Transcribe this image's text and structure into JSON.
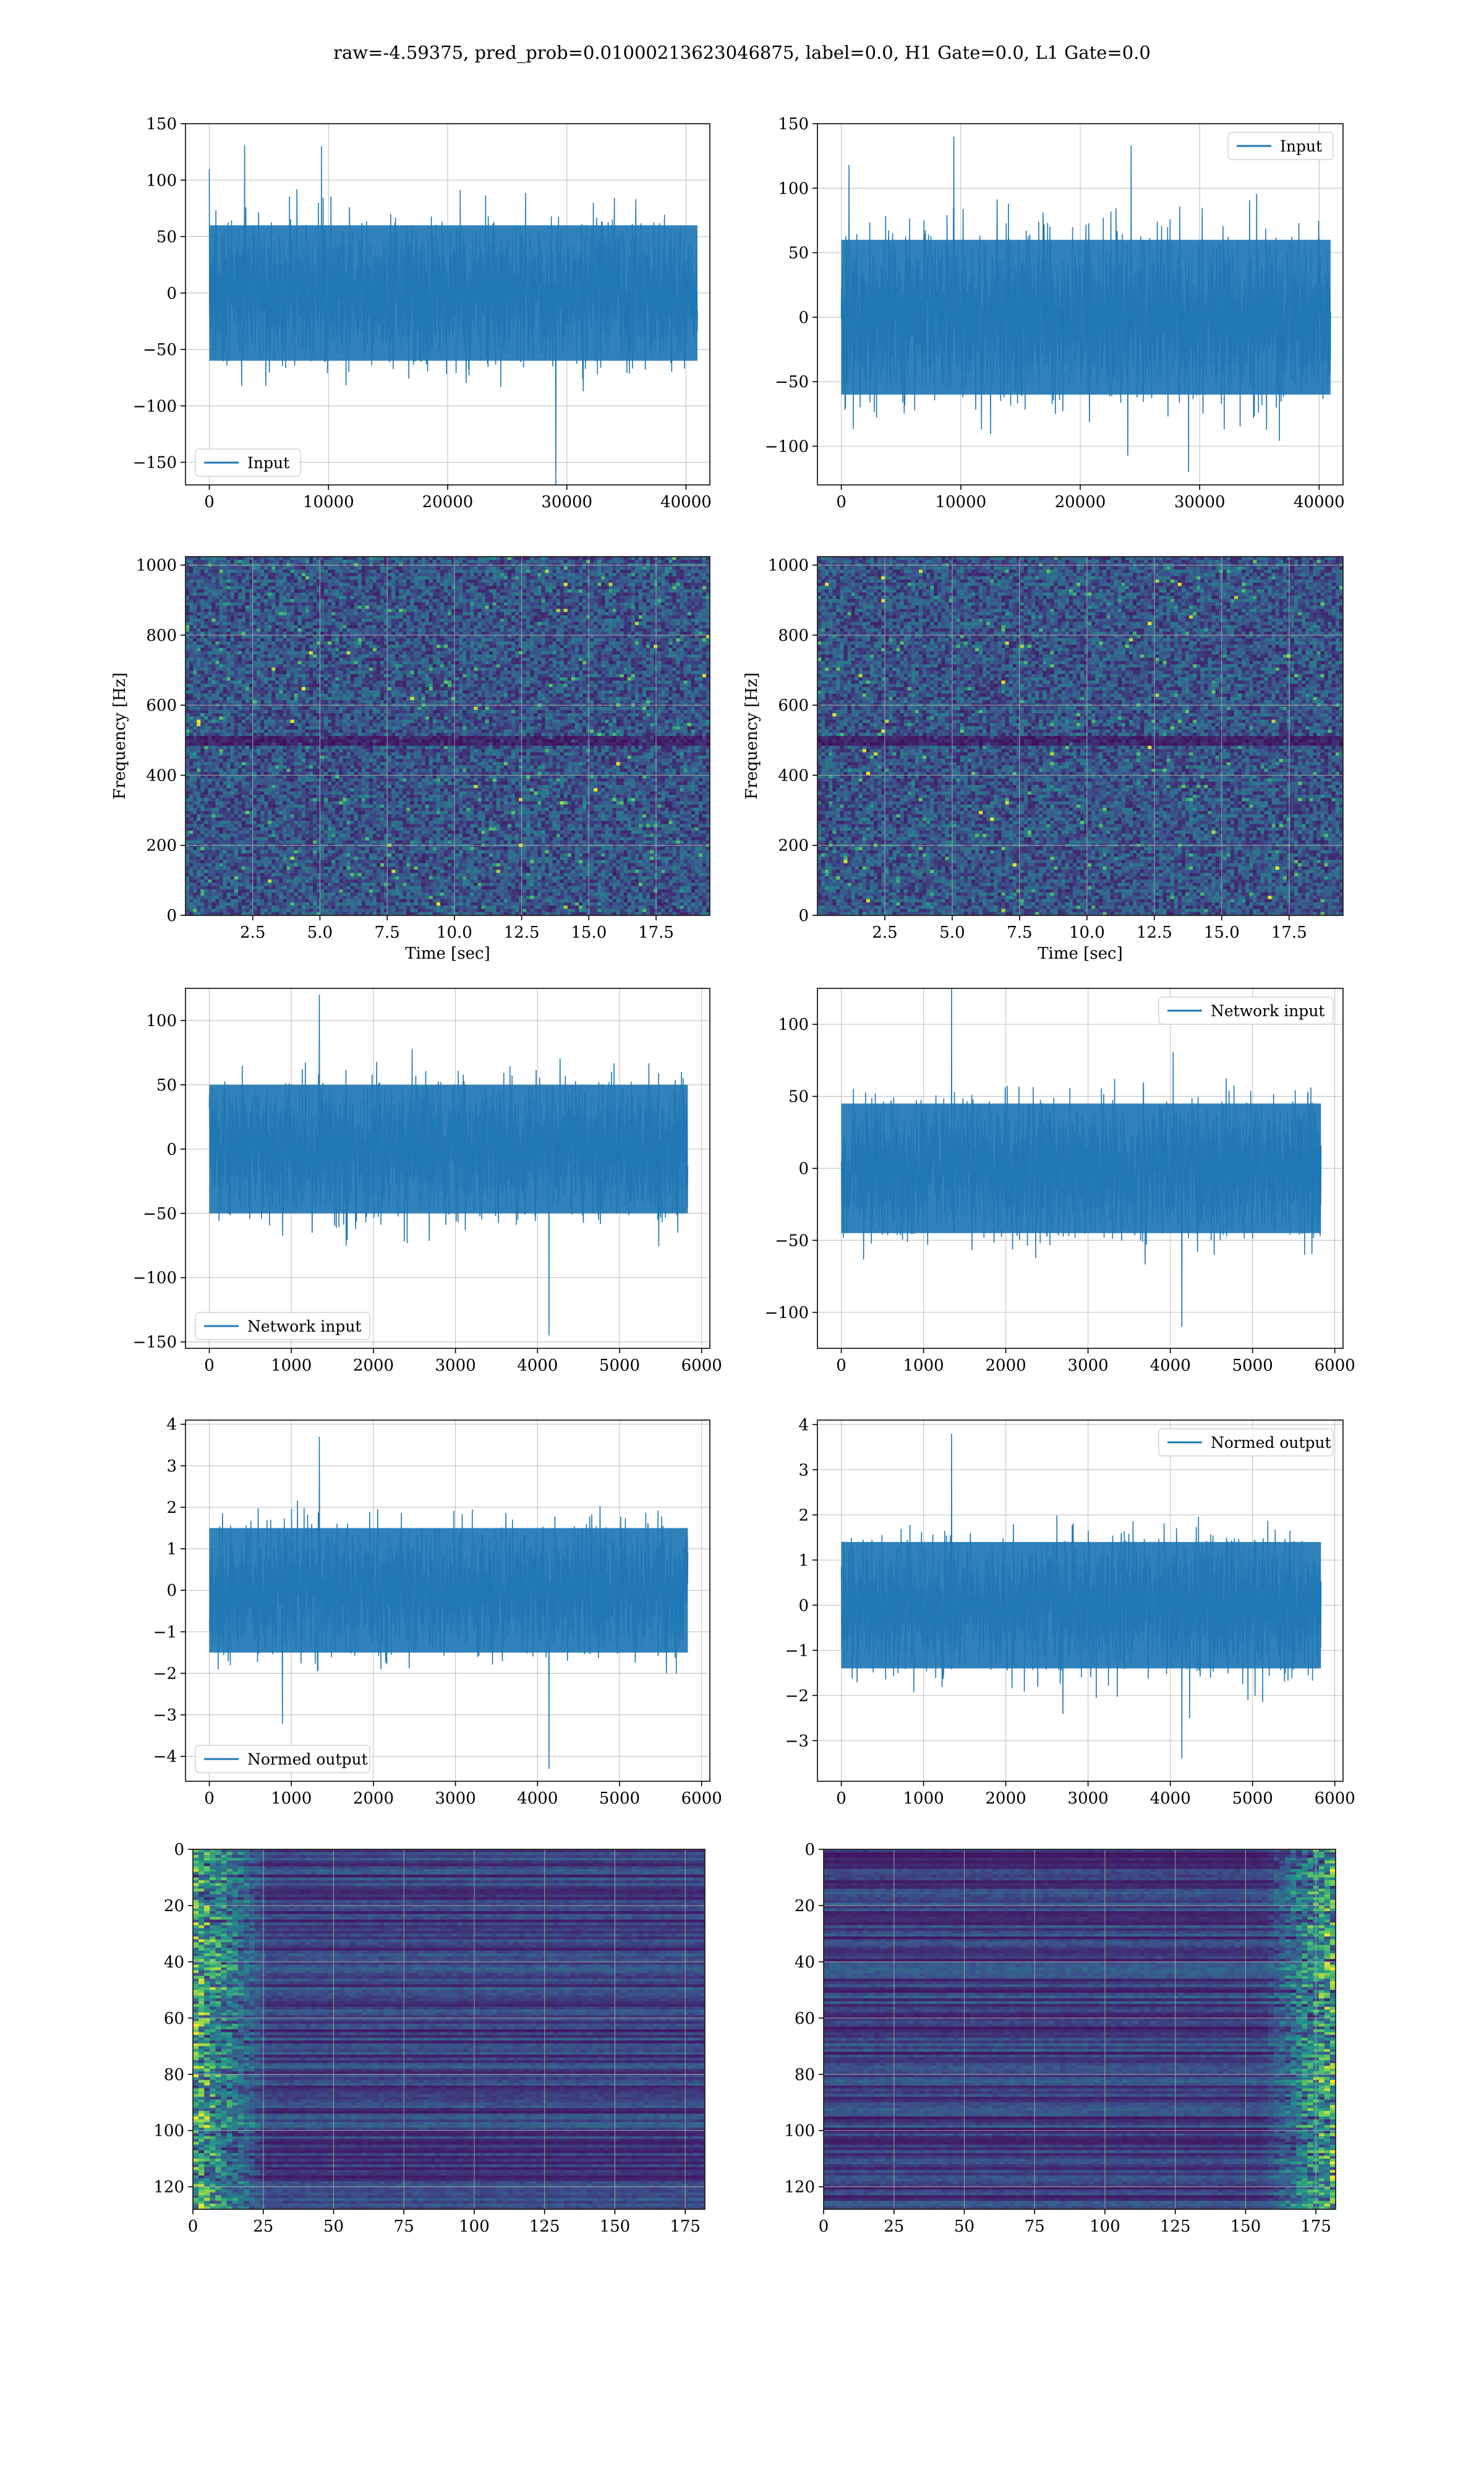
{
  "figure": {
    "title": "raw=-4.59375, pred_prob=0.01000213623046875, label=0.0, H1 Gate=0.0, L1 Gate=0.0"
  },
  "colors": {
    "line": "#1f77b4",
    "grid": "#b0b0b0",
    "viridis": [
      "#440154",
      "#3b528b",
      "#21918c",
      "#5ec962",
      "#fde725"
    ]
  },
  "chart_data": [
    {
      "id": "input-h1",
      "type": "line",
      "xlim": [
        -2000,
        42000
      ],
      "ylim": [
        -170,
        150
      ],
      "xticks": [
        "0",
        "10000",
        "20000",
        "30000",
        "40000"
      ],
      "xtick_values": [
        0,
        10000,
        20000,
        30000,
        40000
      ],
      "yticks": [
        "−150",
        "−100",
        "−50",
        "0",
        "50",
        "100",
        "150"
      ],
      "ytick_values": [
        -150,
        -100,
        -50,
        0,
        50,
        100,
        150
      ],
      "xlabel": "",
      "ylabel": "",
      "legend": "lower-left",
      "series": [
        {
          "name": "Input",
          "x_range": [
            0,
            40960
          ],
          "band": [
            -60,
            60
          ],
          "peaks": [
            130,
            -170
          ]
        }
      ]
    },
    {
      "id": "input-l1",
      "type": "line",
      "xlim": [
        -2000,
        42000
      ],
      "ylim": [
        -130,
        150
      ],
      "xticks": [
        "0",
        "10000",
        "20000",
        "30000",
        "40000"
      ],
      "xtick_values": [
        0,
        10000,
        20000,
        30000,
        40000
      ],
      "yticks": [
        "−100",
        "−50",
        "0",
        "50",
        "100",
        "150"
      ],
      "ytick_values": [
        -100,
        -50,
        0,
        50,
        100,
        150
      ],
      "xlabel": "",
      "ylabel": "",
      "legend": "upper-right",
      "series": [
        {
          "name": "Input",
          "x_range": [
            0,
            40960
          ],
          "band": [
            -60,
            60
          ],
          "peaks": [
            140,
            -120
          ]
        }
      ]
    },
    {
      "id": "spec-h1",
      "type": "heatmap",
      "xlim": [
        0,
        19.5
      ],
      "ylim": [
        0,
        1024
      ],
      "xticks": [
        "2.5",
        "5.0",
        "7.5",
        "10.0",
        "12.5",
        "15.0",
        "17.5"
      ],
      "xtick_values": [
        2.5,
        5,
        7.5,
        10,
        12.5,
        15,
        17.5
      ],
      "yticks": [
        "0",
        "200",
        "400",
        "600",
        "800",
        "1000"
      ],
      "ytick_values": [
        0,
        200,
        400,
        600,
        800,
        1000
      ],
      "xlabel": "Time [sec]",
      "ylabel": "Frequency [Hz]",
      "colormap": "viridis"
    },
    {
      "id": "spec-l1",
      "type": "heatmap",
      "xlim": [
        0,
        19.5
      ],
      "ylim": [
        0,
        1024
      ],
      "xticks": [
        "2.5",
        "5.0",
        "7.5",
        "10.0",
        "12.5",
        "15.0",
        "17.5"
      ],
      "xtick_values": [
        2.5,
        5,
        7.5,
        10,
        12.5,
        15,
        17.5
      ],
      "yticks": [
        "0",
        "200",
        "400",
        "600",
        "800",
        "1000"
      ],
      "ytick_values": [
        0,
        200,
        400,
        600,
        800,
        1000
      ],
      "xlabel": "Time [sec]",
      "ylabel": "Frequency [Hz]",
      "colormap": "viridis"
    },
    {
      "id": "net-h1",
      "type": "line",
      "xlim": [
        -290,
        6100
      ],
      "ylim": [
        -155,
        125
      ],
      "xticks": [
        "0",
        "1000",
        "2000",
        "3000",
        "4000",
        "5000",
        "6000"
      ],
      "xtick_values": [
        0,
        1000,
        2000,
        3000,
        4000,
        5000,
        6000
      ],
      "yticks": [
        "−150",
        "−100",
        "−50",
        "0",
        "50",
        "100"
      ],
      "ytick_values": [
        -150,
        -100,
        -50,
        0,
        50,
        100
      ],
      "xlabel": "",
      "ylabel": "",
      "legend": "lower-left",
      "series": [
        {
          "name": "Network input",
          "x_range": [
            0,
            5832
          ],
          "band": [
            -50,
            50
          ],
          "peaks": [
            120,
            -145
          ]
        }
      ]
    },
    {
      "id": "net-l1",
      "type": "line",
      "xlim": [
        -290,
        6100
      ],
      "ylim": [
        -125,
        125
      ],
      "xticks": [
        "0",
        "1000",
        "2000",
        "3000",
        "4000",
        "5000",
        "6000"
      ],
      "xtick_values": [
        0,
        1000,
        2000,
        3000,
        4000,
        5000,
        6000
      ],
      "yticks": [
        "−100",
        "−50",
        "0",
        "50",
        "100"
      ],
      "ytick_values": [
        -100,
        -50,
        0,
        50,
        100
      ],
      "xlabel": "",
      "ylabel": "",
      "legend": "upper-right",
      "series": [
        {
          "name": "Network input",
          "x_range": [
            0,
            5832
          ],
          "band": [
            -45,
            45
          ],
          "peaks": [
            125,
            -110
          ]
        }
      ]
    },
    {
      "id": "norm-h1",
      "type": "line",
      "xlim": [
        -290,
        6100
      ],
      "ylim": [
        -4.6,
        4.1
      ],
      "xticks": [
        "0",
        "1000",
        "2000",
        "3000",
        "4000",
        "5000",
        "6000"
      ],
      "xtick_values": [
        0,
        1000,
        2000,
        3000,
        4000,
        5000,
        6000
      ],
      "yticks": [
        "−4",
        "−3",
        "−2",
        "−1",
        "0",
        "1",
        "2",
        "3",
        "4"
      ],
      "ytick_values": [
        -4,
        -3,
        -2,
        -1,
        0,
        1,
        2,
        3,
        4
      ],
      "xlabel": "",
      "ylabel": "",
      "legend": "lower-left",
      "series": [
        {
          "name": "Normed output",
          "x_range": [
            0,
            5832
          ],
          "band": [
            -1.5,
            1.5
          ],
          "peaks": [
            3.7,
            -4.3
          ]
        }
      ]
    },
    {
      "id": "norm-l1",
      "type": "line",
      "xlim": [
        -290,
        6100
      ],
      "ylim": [
        -3.9,
        4.1
      ],
      "xticks": [
        "0",
        "1000",
        "2000",
        "3000",
        "4000",
        "5000",
        "6000"
      ],
      "xtick_values": [
        0,
        1000,
        2000,
        3000,
        4000,
        5000,
        6000
      ],
      "yticks": [
        "−3",
        "−2",
        "−1",
        "0",
        "1",
        "2",
        "3",
        "4"
      ],
      "ytick_values": [
        -3,
        -2,
        -1,
        0,
        1,
        2,
        3,
        4
      ],
      "xlabel": "",
      "ylabel": "",
      "legend": "upper-right",
      "series": [
        {
          "name": "Normed output",
          "x_range": [
            0,
            5832
          ],
          "band": [
            -1.4,
            1.4
          ],
          "peaks": [
            3.8,
            -3.4
          ]
        }
      ]
    },
    {
      "id": "feat-h1",
      "type": "heatmap",
      "xlim": [
        0,
        182
      ],
      "ylim": [
        128,
        0
      ],
      "xticks": [
        "0",
        "25",
        "50",
        "75",
        "100",
        "125",
        "150",
        "175"
      ],
      "xtick_values": [
        0,
        25,
        50,
        75,
        100,
        125,
        150,
        175
      ],
      "yticks": [
        "0",
        "20",
        "40",
        "60",
        "80",
        "100",
        "120"
      ],
      "ytick_values": [
        0,
        20,
        40,
        60,
        80,
        100,
        120
      ],
      "xlabel": "",
      "ylabel": "",
      "colormap": "viridis",
      "bright_region": "left"
    },
    {
      "id": "feat-l1",
      "type": "heatmap",
      "xlim": [
        0,
        182
      ],
      "ylim": [
        128,
        0
      ],
      "xticks": [
        "0",
        "25",
        "50",
        "75",
        "100",
        "125",
        "150",
        "175"
      ],
      "xtick_values": [
        0,
        25,
        50,
        75,
        100,
        125,
        150,
        175
      ],
      "yticks": [
        "0",
        "20",
        "40",
        "60",
        "80",
        "100",
        "120"
      ],
      "ytick_values": [
        0,
        20,
        40,
        60,
        80,
        100,
        120
      ],
      "xlabel": "",
      "ylabel": "",
      "colormap": "viridis",
      "bright_region": "right"
    }
  ]
}
